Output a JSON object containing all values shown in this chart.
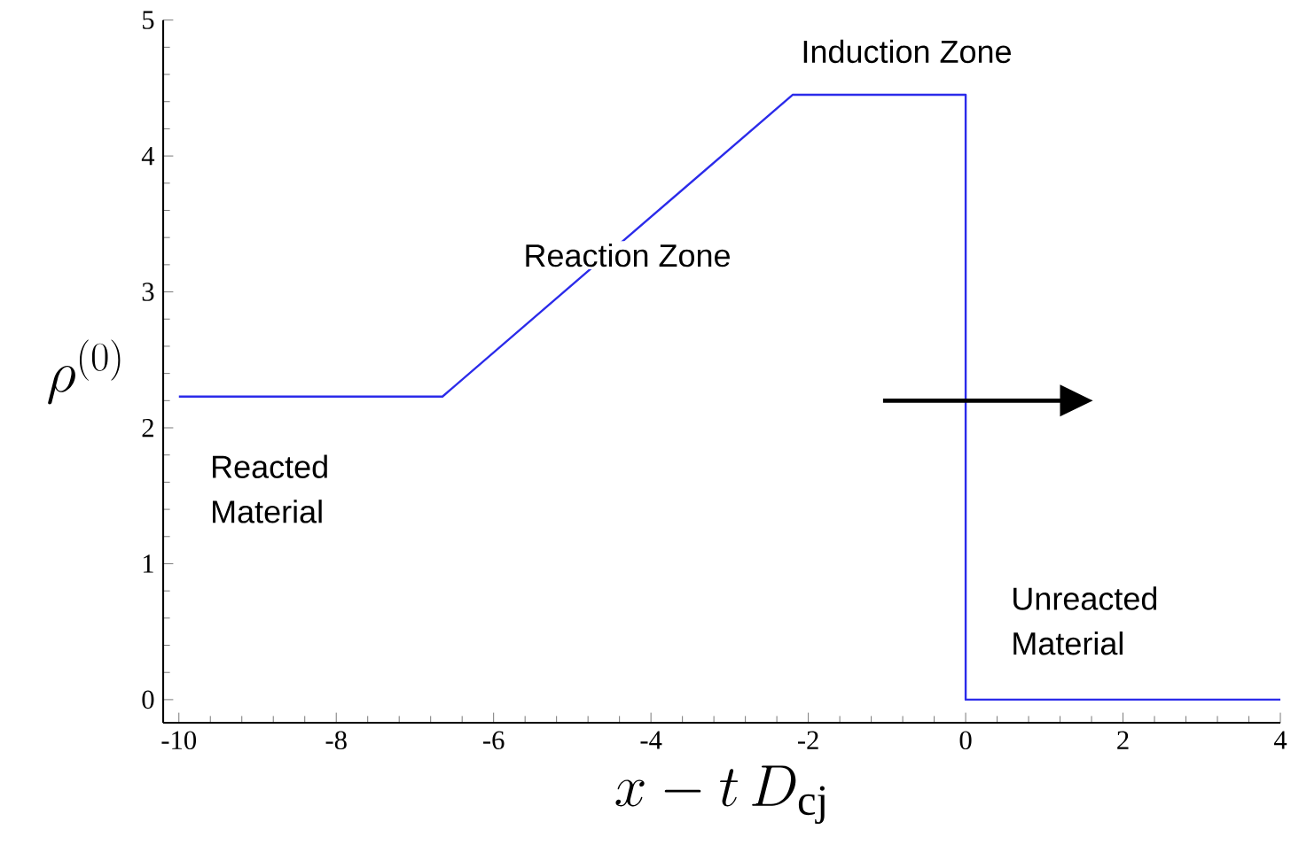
{
  "chart_data": {
    "type": "line",
    "xlabel": "x - t\\,D_{\\mathrm{cj}}",
    "ylabel": "\\rho^{(0)}",
    "x": [
      -10,
      -6.65,
      -2.2,
      0,
      0,
      4
    ],
    "series": [
      {
        "color": "#2b2bea",
        "values": [
          2.23,
          2.23,
          4.45,
          4.45,
          0,
          0
        ]
      }
    ],
    "xlim": [
      -10.2,
      4
    ],
    "ylim": [
      -0.17,
      5
    ],
    "xticks": [
      -10,
      -8,
      -6,
      -4,
      -2,
      0,
      2,
      4
    ],
    "yticks": [
      0,
      1,
      2,
      3,
      4,
      5
    ],
    "grid": false,
    "marker": "none",
    "line_style": "solid",
    "annotations": [
      "Reacted Material",
      "Reaction Zone",
      "Induction Zone",
      "Unreacted Material"
    ]
  }
}
